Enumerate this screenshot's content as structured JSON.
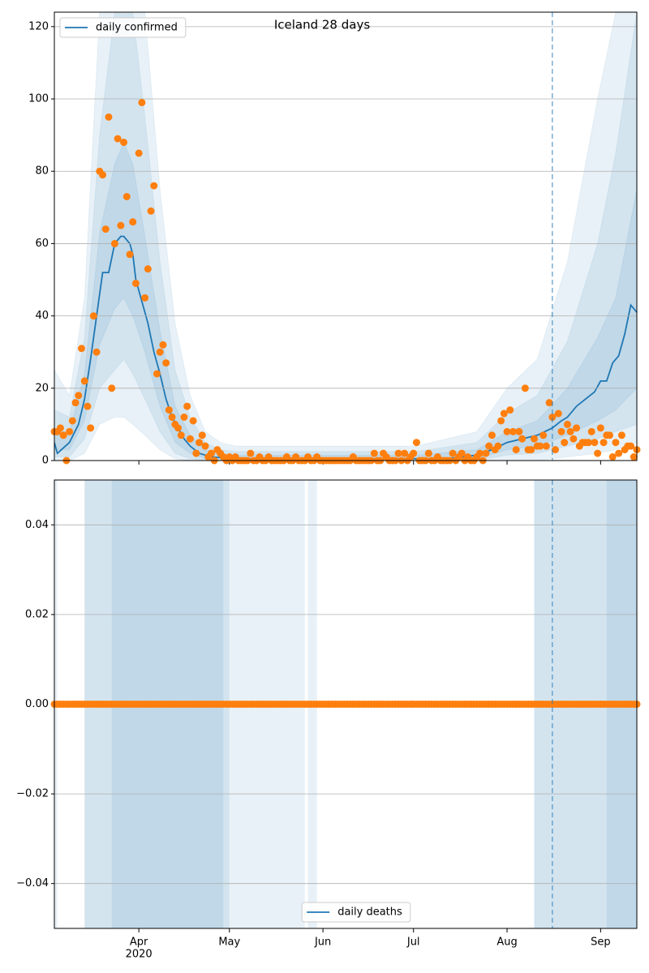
{
  "chart_data": [
    {
      "type": "line",
      "title": "Iceland 28 days",
      "xlim": [
        0,
        193
      ],
      "xticks": [
        28,
        58,
        89,
        119,
        150,
        181
      ],
      "ylim": [
        0,
        124
      ],
      "yticks": [
        0,
        20,
        40,
        60,
        80,
        100,
        120
      ],
      "grid": true,
      "legend": "upper left",
      "vline_x": 165,
      "x": [
        0,
        1,
        2,
        3,
        4,
        5,
        6,
        7,
        8,
        9,
        10,
        11,
        12,
        13,
        14,
        15,
        16,
        17,
        18,
        19,
        20,
        21,
        22,
        23,
        24,
        25,
        26,
        27,
        28,
        29,
        30,
        31,
        32,
        33,
        34,
        35,
        36,
        37,
        38,
        39,
        40,
        41,
        42,
        43,
        44,
        45,
        46,
        47,
        48,
        49,
        50,
        51,
        52,
        53,
        54,
        55,
        56,
        57,
        58,
        59,
        60,
        61,
        62,
        63,
        64,
        65,
        66,
        67,
        68,
        69,
        70,
        71,
        72,
        73,
        74,
        75,
        76,
        77,
        78,
        79,
        80,
        81,
        82,
        83,
        84,
        85,
        86,
        87,
        88,
        89,
        90,
        91,
        92,
        93,
        94,
        95,
        96,
        97,
        98,
        99,
        100,
        101,
        102,
        103,
        104,
        105,
        106,
        107,
        108,
        109,
        110,
        111,
        112,
        113,
        114,
        115,
        116,
        117,
        118,
        119,
        120,
        121,
        122,
        123,
        124,
        125,
        126,
        127,
        128,
        129,
        130,
        131,
        132,
        133,
        134,
        135,
        136,
        137,
        138,
        139,
        140,
        141,
        142,
        143,
        144,
        145,
        146,
        147,
        148,
        149,
        150,
        151,
        152,
        153,
        154,
        155,
        156,
        157,
        158,
        159,
        160,
        161,
        162,
        163,
        164,
        165,
        166,
        167,
        168,
        169,
        170,
        171,
        172,
        173,
        174,
        175,
        176,
        177,
        178,
        179,
        180,
        181,
        182,
        183,
        184,
        185,
        186,
        187,
        188,
        189,
        190,
        191,
        192,
        193
      ],
      "series": [
        {
          "name": "daily confirmed",
          "type": "line",
          "color": "#1f77b4",
          "x": [
            0,
            1,
            5,
            8,
            10,
            12,
            14,
            16,
            18,
            20,
            22,
            23,
            25,
            26,
            27,
            29,
            31,
            33,
            35,
            37,
            39,
            41,
            43,
            45,
            48,
            52,
            60,
            80,
            120,
            130,
            140,
            145,
            150,
            155,
            160,
            165,
            168,
            170,
            173,
            176,
            179,
            181,
            183,
            185,
            187,
            189,
            191,
            193
          ],
          "values": [
            5,
            2,
            5,
            10,
            17,
            28,
            40,
            52,
            52,
            60,
            62,
            62,
            60,
            57,
            50,
            44,
            38,
            30,
            24,
            17,
            12,
            9,
            6,
            4,
            2,
            1,
            0.5,
            0.5,
            0.5,
            0.5,
            1.5,
            3,
            5,
            6,
            7,
            9,
            11,
            12,
            15,
            17,
            19,
            22,
            22,
            27,
            29,
            35,
            43,
            41
          ]
        },
        {
          "type": "scatter",
          "color": "#ff7f0e",
          "values": [
            8,
            8,
            9,
            7,
            0,
            8,
            11,
            16,
            18,
            31,
            22,
            15,
            9,
            40,
            30,
            80,
            79,
            64,
            95,
            20,
            60,
            89,
            65,
            88,
            73,
            57,
            66,
            49,
            85,
            99,
            45,
            53,
            69,
            76,
            24,
            30,
            32,
            27,
            14,
            12,
            10,
            9,
            7,
            12,
            15,
            6,
            11,
            2,
            5,
            7,
            4,
            1,
            2,
            0,
            3,
            2,
            1,
            0,
            1,
            0,
            1,
            0,
            0,
            0,
            0,
            2,
            0,
            0,
            1,
            0,
            0,
            1,
            0,
            0,
            0,
            0,
            0,
            1,
            0,
            0,
            1,
            0,
            0,
            0,
            1,
            0,
            0,
            1,
            0,
            0,
            0,
            0,
            0,
            0,
            0,
            0,
            0,
            0,
            0,
            1,
            0,
            0,
            0,
            0,
            0,
            0,
            2,
            0,
            0,
            2,
            1,
            0,
            0,
            0,
            2,
            0,
            2,
            0,
            1,
            2,
            5,
            0,
            0,
            0,
            2,
            0,
            0,
            1,
            0,
            0,
            0,
            0,
            2,
            0,
            1,
            2,
            0,
            1,
            0,
            0,
            1,
            2,
            0,
            2,
            4,
            7,
            3,
            4,
            11,
            13,
            8,
            14,
            8,
            3,
            8,
            6,
            20,
            3,
            3,
            6,
            4,
            4,
            7,
            4,
            16,
            12,
            3,
            13,
            8,
            5,
            10,
            8,
            6,
            9,
            4,
            5,
            5,
            5,
            8,
            5,
            2,
            9,
            5,
            7,
            7,
            1,
            5,
            2,
            7,
            3,
            4,
            4,
            1,
            3
          ]
        }
      ],
      "bands": [
        {
          "x": [
            0,
            5,
            10,
            15,
            20,
            23,
            26,
            30,
            35,
            40,
            45,
            50,
            55,
            60,
            80,
            120,
            140,
            150,
            160,
            170,
            180,
            186,
            193
          ],
          "lower": [
            0,
            0,
            2,
            10,
            12,
            12,
            10,
            7,
            3,
            0.5,
            0,
            0,
            0,
            0,
            0,
            0,
            0,
            0,
            0,
            1,
            2,
            3,
            5
          ],
          "upper": [
            25,
            18,
            45,
            124,
            124,
            124,
            124,
            124,
            75,
            38,
            18,
            8,
            5,
            4,
            4,
            4,
            8,
            20,
            28,
            55,
            100,
            124,
            124
          ]
        },
        {
          "x": [
            0,
            5,
            10,
            15,
            20,
            23,
            26,
            30,
            35,
            40,
            45,
            50,
            55,
            60,
            80,
            120,
            140,
            150,
            160,
            170,
            180,
            186,
            193
          ],
          "lower": [
            1,
            1,
            6,
            20,
            25,
            28,
            24,
            17,
            8,
            2,
            0.5,
            0,
            0,
            0,
            0,
            0,
            0,
            1.5,
            2,
            4,
            6,
            8,
            10
          ],
          "upper": [
            14,
            12,
            34,
            90,
            124,
            124,
            124,
            95,
            55,
            25,
            12,
            5,
            3,
            2.5,
            2.5,
            2.5,
            5,
            13,
            18,
            33,
            60,
            85,
            124
          ]
        },
        {
          "x": [
            0,
            5,
            10,
            15,
            20,
            23,
            26,
            30,
            35,
            40,
            45,
            50,
            55,
            60,
            80,
            120,
            140,
            150,
            160,
            170,
            180,
            186,
            193
          ],
          "lower": [
            3,
            3,
            11,
            32,
            42,
            45,
            40,
            30,
            15,
            5,
            2,
            0.5,
            0,
            0,
            0,
            0,
            0.5,
            3,
            4,
            7,
            11,
            14,
            20
          ],
          "upper": [
            8,
            8,
            24,
            63,
            82,
            88,
            82,
            62,
            36,
            15,
            7,
            3,
            2,
            1.5,
            1.5,
            1.5,
            3,
            8,
            11,
            20,
            34,
            45,
            75
          ]
        }
      ],
      "band_color": "#1f77b4"
    },
    {
      "type": "line",
      "xlim": [
        0,
        193
      ],
      "xticks": [
        {
          "value": 28,
          "label": "Apr"
        },
        {
          "value": 58,
          "label": "May"
        },
        {
          "value": 89,
          "label": "Jun"
        },
        {
          "value": 119,
          "label": "Jul"
        },
        {
          "value": 150,
          "label": "Aug"
        },
        {
          "value": 181,
          "label": "Sep"
        }
      ],
      "xtick_sublabel": {
        "value": 28,
        "label": "2020"
      },
      "ylim": [
        -0.05,
        0.05
      ],
      "yticks": [
        {
          "value": -0.04,
          "label": "−0.04"
        },
        {
          "value": -0.02,
          "label": "−0.02"
        },
        {
          "value": 0,
          "label": "0.00"
        },
        {
          "value": 0.02,
          "label": "0.02"
        },
        {
          "value": 0.04,
          "label": "0.04"
        }
      ],
      "grid": true,
      "legend": "lower center",
      "vline_x": 165,
      "x": [
        0,
        1,
        2,
        3,
        4,
        5,
        6,
        7,
        8,
        9,
        10,
        11,
        12,
        13,
        14,
        15,
        16,
        17,
        18,
        19,
        20,
        21,
        22,
        23,
        24,
        25,
        26,
        27,
        28,
        29,
        30,
        31,
        32,
        33,
        34,
        35,
        36,
        37,
        38,
        39,
        40,
        41,
        42,
        43,
        44,
        45,
        46,
        47,
        48,
        49,
        50,
        51,
        52,
        53,
        54,
        55,
        56,
        57,
        58,
        59,
        60,
        61,
        62,
        63,
        64,
        65,
        66,
        67,
        68,
        69,
        70,
        71,
        72,
        73,
        74,
        75,
        76,
        77,
        78,
        79,
        80,
        81,
        82,
        83,
        84,
        85,
        86,
        87,
        88,
        89,
        90,
        91,
        92,
        93,
        94,
        95,
        96,
        97,
        98,
        99,
        100,
        101,
        102,
        103,
        104,
        105,
        106,
        107,
        108,
        109,
        110,
        111,
        112,
        113,
        114,
        115,
        116,
        117,
        118,
        119,
        120,
        121,
        122,
        123,
        124,
        125,
        126,
        127,
        128,
        129,
        130,
        131,
        132,
        133,
        134,
        135,
        136,
        137,
        138,
        139,
        140,
        141,
        142,
        143,
        144,
        145,
        146,
        147,
        148,
        149,
        150,
        151,
        152,
        153,
        154,
        155,
        156,
        157,
        158,
        159,
        160,
        161,
        162,
        163,
        164,
        165,
        166,
        167,
        168,
        169,
        170,
        171,
        172,
        173,
        174,
        175,
        176,
        177,
        178,
        179,
        180,
        181,
        182,
        183,
        184,
        185,
        186,
        187,
        188,
        189,
        190,
        191,
        192,
        193
      ],
      "series": [
        {
          "name": "daily deaths",
          "type": "line",
          "color": "#1f77b4",
          "x": [
            0,
            193
          ],
          "values": [
            0,
            0
          ]
        },
        {
          "type": "scatter",
          "color": "#ff7f0e",
          "values": [
            0,
            0,
            0,
            0,
            0,
            0,
            0,
            0,
            0,
            0,
            0,
            0,
            0,
            0,
            0,
            0,
            0,
            0,
            0,
            0,
            0,
            0,
            0,
            0,
            0,
            0,
            0,
            0,
            0,
            0,
            0,
            0,
            0,
            0,
            0,
            0,
            0,
            0,
            0,
            0,
            0,
            0,
            0,
            0,
            0,
            0,
            0,
            0,
            0,
            0,
            0,
            0,
            0,
            0,
            0,
            0,
            0,
            0,
            0,
            0,
            0,
            0,
            0,
            0,
            0,
            0,
            0,
            0,
            0,
            0,
            0,
            0,
            0,
            0,
            0,
            0,
            0,
            0,
            0,
            0,
            0,
            0,
            0,
            0,
            0,
            0,
            0,
            0,
            0,
            0,
            0,
            0,
            0,
            0,
            0,
            0,
            0,
            0,
            0,
            0,
            0,
            0,
            0,
            0,
            0,
            0,
            0,
            0,
            0,
            0,
            0,
            0,
            0,
            0,
            0,
            0,
            0,
            0,
            0,
            0,
            0,
            0,
            0,
            0,
            0,
            0,
            0,
            0,
            0,
            0,
            0,
            0,
            0,
            0,
            0,
            0,
            0,
            0,
            0,
            0,
            0,
            0,
            0,
            0,
            0,
            0,
            0,
            0,
            0,
            0,
            0,
            0,
            0,
            0,
            0,
            0,
            0,
            0,
            0,
            0,
            0,
            0,
            0,
            0,
            0,
            0,
            0,
            0,
            0,
            0,
            0,
            0,
            0,
            0,
            0,
            0,
            0,
            0,
            0,
            0,
            0,
            0,
            0,
            0,
            0,
            0,
            0,
            0,
            0,
            0,
            0,
            0,
            0,
            0
          ]
        }
      ],
      "spans": [
        [
          [
            0,
            1
          ],
          [
            10,
            83
          ],
          [
            84,
            87
          ],
          [
            159,
            193
          ]
        ],
        [
          [
            10,
            58
          ],
          [
            159,
            193
          ]
        ],
        [
          [
            19,
            56
          ],
          [
            183,
            193
          ]
        ]
      ],
      "band_color": "#1f77b4"
    }
  ]
}
